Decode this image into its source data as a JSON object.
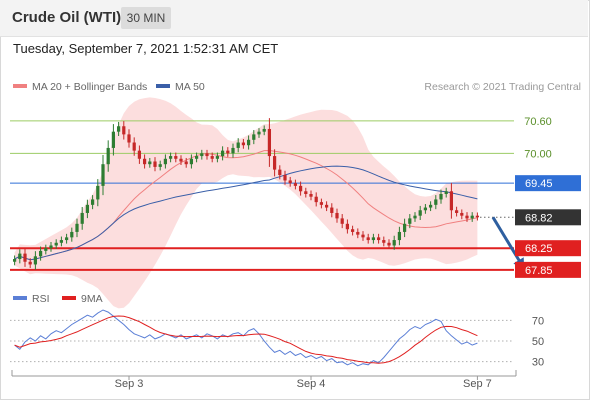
{
  "header": {
    "title": "Crude Oil (WTI)",
    "timeframe": "30 MIN",
    "timestamp": "Tuesday, September 7, 2021 1:52:31 AM CET"
  },
  "legend": {
    "items": [
      {
        "label": "MA 20 + Bollinger Bands",
        "color": "#f08080"
      },
      {
        "label": "MA 50",
        "color": "#3a5fa8"
      }
    ],
    "copyright": "Research © 2021 Trading Central"
  },
  "rsi_legend": {
    "items": [
      {
        "label": "RSI",
        "color": "#5b7fd6"
      },
      {
        "label": "9MA",
        "color": "#e02020"
      }
    ]
  },
  "colors": {
    "candle_up": "#2e7d32",
    "candle_down": "#c62828",
    "bollinger_fill": "#fbd3d3",
    "ma20": "#f08080",
    "ma50": "#3a5fa8",
    "resistance_green": "#9ccc65",
    "level_blue": "#2f6fd6",
    "support_red": "#e02020",
    "current_price_bg": "#333333",
    "arrow": "#2e5fa0",
    "rsi_line": "#5b7fd6",
    "rsi_ma": "#e02020"
  },
  "chart_data": {
    "type": "candlestick",
    "y_range": [
      67.7,
      70.8
    ],
    "rsi_range": [
      20,
      80
    ],
    "x_ticks": [
      {
        "label": "Sep 3",
        "index": 22
      },
      {
        "label": "Sep 4",
        "index": 57
      },
      {
        "label": "Sep 7",
        "index": 89
      }
    ],
    "levels": [
      {
        "value": 70.6,
        "label": "70.60",
        "style": "resistance_green"
      },
      {
        "value": 70.0,
        "label": "70.00",
        "style": "resistance_green"
      },
      {
        "value": 69.45,
        "label": "69.45",
        "style": "level_blue"
      },
      {
        "value": 68.82,
        "label": "68.82",
        "style": "current",
        "dotted": true
      },
      {
        "value": 68.25,
        "label": "68.25",
        "style": "support_red"
      },
      {
        "value": 67.85,
        "label": "67.85",
        "style": "support_red"
      }
    ],
    "projection": {
      "from_index": 92,
      "from_value": 68.82,
      "to_index": 98,
      "to_value": 67.85
    },
    "rsi_levels": [
      {
        "value": 70,
        "label": "70"
      },
      {
        "value": 50,
        "label": "50"
      },
      {
        "value": 30,
        "label": "30"
      }
    ],
    "close": [
      68.05,
      68.15,
      68.0,
      67.95,
      68.1,
      68.2,
      68.25,
      68.3,
      68.35,
      68.4,
      68.45,
      68.55,
      68.7,
      68.9,
      69.05,
      69.15,
      69.4,
      69.8,
      70.1,
      70.4,
      70.5,
      70.35,
      70.2,
      70.05,
      69.9,
      69.8,
      69.85,
      69.75,
      69.8,
      69.9,
      69.95,
      69.9,
      69.85,
      69.8,
      69.9,
      69.95,
      70.0,
      69.95,
      69.9,
      69.95,
      70.05,
      70.0,
      70.1,
      70.2,
      70.15,
      70.25,
      70.35,
      70.4,
      70.45,
      69.95,
      69.7,
      69.6,
      69.5,
      69.45,
      69.4,
      69.3,
      69.25,
      69.2,
      69.1,
      69.05,
      69.0,
      68.9,
      68.8,
      68.7,
      68.6,
      68.55,
      68.5,
      68.45,
      68.4,
      68.45,
      68.4,
      68.35,
      68.3,
      68.4,
      68.55,
      68.7,
      68.8,
      68.85,
      68.95,
      69.0,
      69.05,
      69.15,
      69.25,
      69.3,
      68.95,
      68.9,
      68.85,
      68.8,
      68.85,
      68.82
    ],
    "rsi": [
      46,
      42,
      49,
      53,
      50,
      55,
      52,
      57,
      60,
      58,
      62,
      66,
      69,
      72,
      75,
      73,
      77,
      80,
      78,
      74,
      70,
      66,
      61,
      57,
      55,
      53,
      56,
      52,
      54,
      57,
      55,
      53,
      56,
      52,
      54,
      56,
      53,
      57,
      55,
      52,
      56,
      54,
      57,
      58,
      55,
      60,
      62,
      57,
      50,
      44,
      39,
      41,
      37,
      40,
      36,
      38,
      34,
      36,
      33,
      35,
      31,
      33,
      29,
      30,
      27,
      29,
      26,
      28,
      27,
      31,
      29,
      34,
      40,
      46,
      52,
      56,
      61,
      64,
      62,
      66,
      68,
      71,
      69,
      60,
      55,
      51,
      47,
      49,
      46,
      48
    ]
  }
}
